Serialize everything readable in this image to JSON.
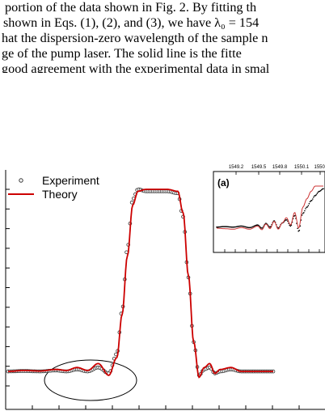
{
  "paper": {
    "lines": [
      "portion of the data shown in Fig. 2. By fitting th",
      "shown in Eqs. (1), (2), and (3), we have λ₀ = 154",
      "hat the dispersion-zero wavelength of the sample n",
      "ge of the pump laser. The solid line is the fitte",
      "good agreement with the experimental data in smal"
    ]
  },
  "chart_data": [
    {
      "type": "line",
      "title": "",
      "xlabel": "",
      "ylabel": "",
      "legend_position": "top-left",
      "xlim": [
        0,
        1
      ],
      "ylim": [
        0,
        1
      ],
      "series": [
        {
          "name": "Experiment",
          "marker": "open-circle",
          "color": "#333333",
          "x": [
            0.0,
            0.06,
            0.12,
            0.18,
            0.22,
            0.26,
            0.3,
            0.34,
            0.38,
            0.41,
            0.43,
            0.45,
            0.47,
            0.49,
            0.52,
            0.56,
            0.6,
            0.64,
            0.66,
            0.68,
            0.7,
            0.72,
            0.74,
            0.76,
            0.78,
            0.8,
            0.84,
            0.88,
            0.93,
            1.0
          ],
          "y": [
            0.07,
            0.072,
            0.07,
            0.075,
            0.07,
            0.08,
            0.07,
            0.09,
            0.06,
            0.16,
            0.38,
            0.7,
            0.95,
            1.0,
            0.99,
            0.99,
            0.99,
            0.98,
            0.86,
            0.55,
            0.22,
            0.05,
            0.08,
            0.09,
            0.06,
            0.07,
            0.08,
            0.07,
            0.07,
            0.07
          ]
        },
        {
          "name": "Theory",
          "color": "#cc0000",
          "x": [
            0.0,
            0.06,
            0.12,
            0.18,
            0.22,
            0.26,
            0.3,
            0.34,
            0.38,
            0.41,
            0.43,
            0.45,
            0.47,
            0.49,
            0.52,
            0.56,
            0.6,
            0.64,
            0.66,
            0.68,
            0.7,
            0.72,
            0.74,
            0.76,
            0.78,
            0.8,
            0.84,
            0.88,
            0.93,
            1.0
          ],
          "y": [
            0.07,
            0.075,
            0.072,
            0.08,
            0.075,
            0.09,
            0.075,
            0.11,
            0.05,
            0.14,
            0.36,
            0.66,
            0.92,
            0.99,
            1.0,
            1.0,
            1.0,
            0.99,
            0.88,
            0.56,
            0.22,
            0.04,
            0.09,
            0.11,
            0.06,
            0.08,
            0.09,
            0.07,
            0.07,
            0.07
          ]
        }
      ],
      "annotation": "ellipse around low-wavelength side lobes"
    },
    {
      "type": "line",
      "panel_label": "(a)",
      "title": "",
      "xlabel": "",
      "ylabel": "",
      "x_ticks": [
        "1549.2",
        "1549.5",
        "1549.8",
        "1550.1",
        "1550."
      ],
      "xlim": [
        1549.0,
        1550.3
      ],
      "ylim": [
        0,
        1
      ],
      "series": [
        {
          "name": "Experiment",
          "color": "#000000",
          "x": [
            1549.0,
            1549.1,
            1549.2,
            1549.3,
            1549.4,
            1549.5,
            1549.55,
            1549.6,
            1549.65,
            1549.7,
            1549.75,
            1549.8,
            1549.85,
            1549.9,
            1549.95,
            1550.0,
            1550.05,
            1550.1,
            1550.15,
            1550.2,
            1550.25,
            1550.3
          ],
          "y": [
            0.22,
            0.23,
            0.22,
            0.24,
            0.21,
            0.26,
            0.2,
            0.29,
            0.22,
            0.34,
            0.2,
            0.3,
            0.36,
            0.24,
            0.44,
            0.14,
            0.48,
            0.6,
            0.72,
            0.82,
            0.9,
            0.95
          ]
        },
        {
          "name": "Theory",
          "color": "#cc3333",
          "x": [
            1549.0,
            1549.1,
            1549.2,
            1549.3,
            1549.4,
            1549.5,
            1549.55,
            1549.6,
            1549.65,
            1549.7,
            1549.75,
            1549.8,
            1549.85,
            1549.9,
            1549.95,
            1550.0,
            1550.05,
            1550.1,
            1550.15,
            1550.2,
            1550.25,
            1550.3
          ],
          "y": [
            0.2,
            0.19,
            0.18,
            0.21,
            0.18,
            0.24,
            0.17,
            0.28,
            0.19,
            0.33,
            0.18,
            0.3,
            0.4,
            0.26,
            0.5,
            0.2,
            0.6,
            0.76,
            0.9,
            1.0,
            1.0,
            1.0
          ]
        }
      ]
    }
  ]
}
